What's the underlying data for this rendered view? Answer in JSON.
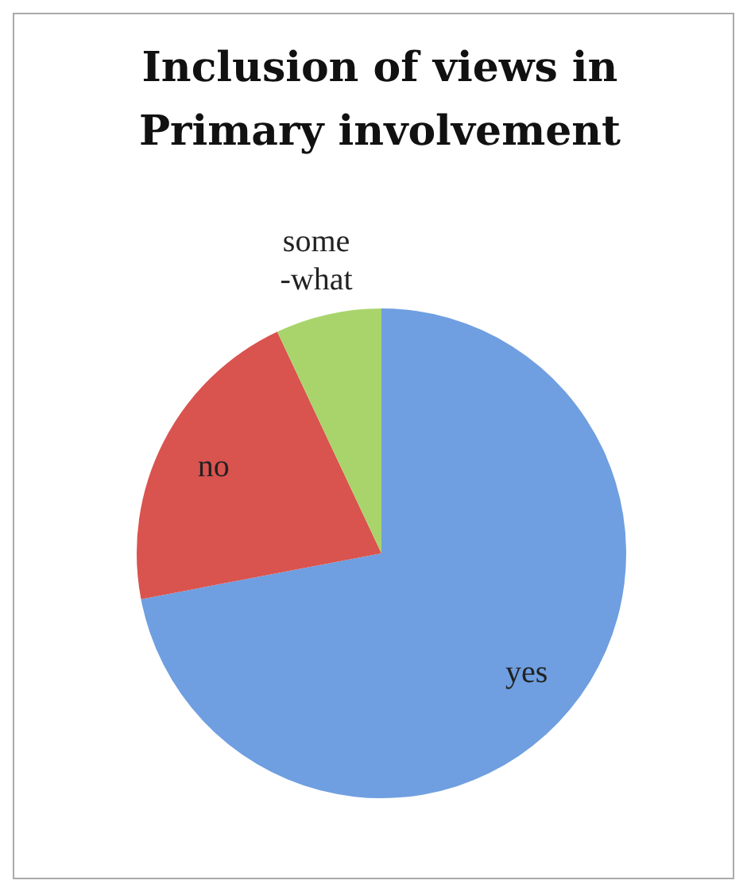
{
  "chart_data": {
    "type": "pie",
    "title": "Inclusion of views in Primary involvement",
    "categories": [
      "yes",
      "no",
      "some -what"
    ],
    "values": [
      72,
      21,
      7
    ],
    "colors": [
      "#6f9fe0",
      "#d9534f",
      "#a9d46b"
    ]
  }
}
